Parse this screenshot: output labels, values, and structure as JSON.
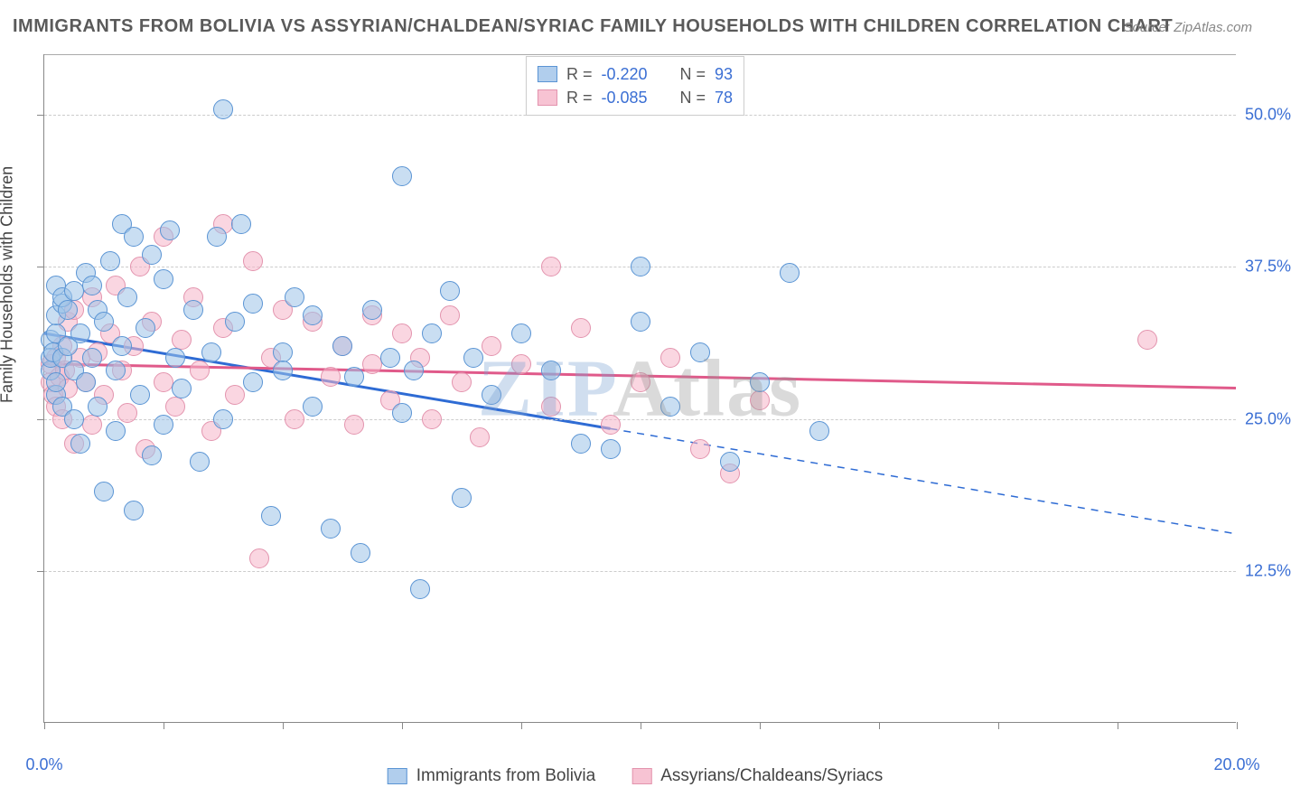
{
  "title": "IMMIGRANTS FROM BOLIVIA VS ASSYRIAN/CHALDEAN/SYRIAC FAMILY HOUSEHOLDS WITH CHILDREN CORRELATION CHART",
  "source": "Source: ZipAtlas.com",
  "ylabel": "Family Households with Children",
  "watermark_a": "ZIP",
  "watermark_b": "Atlas",
  "chart": {
    "type": "scatter",
    "xlim": [
      0,
      20
    ],
    "ylim": [
      0,
      55
    ],
    "x_tick_step": 2,
    "y_grid": [
      12.5,
      25.0,
      37.5,
      50.0
    ],
    "y_grid_labels": [
      "12.5%",
      "25.0%",
      "37.5%",
      "50.0%"
    ],
    "x_labels": [
      {
        "x": 0,
        "label": "0.0%"
      },
      {
        "x": 20,
        "label": "20.0%"
      }
    ],
    "background_color": "#ffffff",
    "grid_color": "#cccccc",
    "axis_color": "#888888",
    "tick_label_color": "#3b6fd4",
    "marker_radius": 11,
    "series": [
      {
        "name": "Immigrants from Bolivia",
        "key": "blue",
        "color_fill": "rgba(157,194,232,0.55)",
        "color_stroke": "#5a94d4",
        "trend_color": "#2e6bd4",
        "trend_width": 3,
        "trend_solid_from_x": 0,
        "trend_solid_to_x": 9.5,
        "trend_dash_to_x": 20,
        "trend_y_at_0": 32.0,
        "trend_y_at_20": 15.5,
        "R": "-0.220",
        "N": "93",
        "points": [
          [
            0.1,
            31.5
          ],
          [
            0.1,
            29.0
          ],
          [
            0.1,
            30.0
          ],
          [
            0.15,
            30.5
          ],
          [
            0.2,
            27.0
          ],
          [
            0.2,
            28.0
          ],
          [
            0.2,
            32.0
          ],
          [
            0.2,
            36.0
          ],
          [
            0.2,
            33.5
          ],
          [
            0.3,
            34.5
          ],
          [
            0.3,
            35.0
          ],
          [
            0.3,
            30.0
          ],
          [
            0.3,
            26.0
          ],
          [
            0.4,
            31.0
          ],
          [
            0.4,
            34.0
          ],
          [
            0.5,
            35.5
          ],
          [
            0.5,
            29.0
          ],
          [
            0.5,
            25.0
          ],
          [
            0.6,
            23.0
          ],
          [
            0.6,
            32.0
          ],
          [
            0.7,
            37.0
          ],
          [
            0.7,
            28.0
          ],
          [
            0.8,
            30.0
          ],
          [
            0.8,
            36.0
          ],
          [
            0.9,
            34.0
          ],
          [
            0.9,
            26.0
          ],
          [
            1.0,
            19.0
          ],
          [
            1.0,
            33.0
          ],
          [
            1.1,
            38.0
          ],
          [
            1.2,
            29.0
          ],
          [
            1.2,
            24.0
          ],
          [
            1.3,
            41.0
          ],
          [
            1.3,
            31.0
          ],
          [
            1.4,
            35.0
          ],
          [
            1.5,
            40.0
          ],
          [
            1.5,
            17.5
          ],
          [
            1.6,
            27.0
          ],
          [
            1.7,
            32.5
          ],
          [
            1.8,
            22.0
          ],
          [
            1.8,
            38.5
          ],
          [
            2.0,
            24.5
          ],
          [
            2.0,
            36.5
          ],
          [
            2.1,
            40.5
          ],
          [
            2.2,
            30.0
          ],
          [
            2.3,
            27.5
          ],
          [
            2.5,
            34.0
          ],
          [
            2.6,
            21.5
          ],
          [
            2.8,
            30.5
          ],
          [
            2.9,
            40.0
          ],
          [
            3.0,
            50.5
          ],
          [
            3.0,
            25.0
          ],
          [
            3.2,
            33.0
          ],
          [
            3.3,
            41.0
          ],
          [
            3.5,
            28.0
          ],
          [
            3.5,
            34.5
          ],
          [
            3.8,
            17.0
          ],
          [
            4.0,
            30.5
          ],
          [
            4.0,
            29.0
          ],
          [
            4.2,
            35.0
          ],
          [
            4.5,
            26.0
          ],
          [
            4.5,
            33.5
          ],
          [
            4.8,
            16.0
          ],
          [
            5.0,
            31.0
          ],
          [
            5.2,
            28.5
          ],
          [
            5.3,
            14.0
          ],
          [
            5.5,
            34.0
          ],
          [
            5.8,
            30.0
          ],
          [
            6.0,
            45.0
          ],
          [
            6.0,
            25.5
          ],
          [
            6.2,
            29.0
          ],
          [
            6.3,
            11.0
          ],
          [
            6.5,
            32.0
          ],
          [
            6.8,
            35.5
          ],
          [
            7.0,
            18.5
          ],
          [
            7.2,
            30.0
          ],
          [
            7.5,
            27.0
          ],
          [
            8.0,
            32.0
          ],
          [
            8.5,
            29.0
          ],
          [
            9.0,
            23.0
          ],
          [
            9.5,
            22.5
          ],
          [
            10.0,
            33.0
          ],
          [
            10.5,
            26.0
          ],
          [
            11.0,
            30.5
          ],
          [
            11.5,
            21.5
          ],
          [
            12.0,
            28.0
          ],
          [
            12.5,
            37.0
          ],
          [
            13.0,
            24.0
          ],
          [
            10.0,
            37.5
          ]
        ]
      },
      {
        "name": "Assyrians/Chaldeans/Syriacs",
        "key": "pink",
        "color_fill": "rgba(245,180,200,0.55)",
        "color_stroke": "#e394ae",
        "trend_color": "#e05a8a",
        "trend_width": 3,
        "trend_solid_from_x": 0,
        "trend_solid_to_x": 20,
        "trend_dash_to_x": 20,
        "trend_y_at_0": 29.5,
        "trend_y_at_20": 27.5,
        "R": "-0.085",
        "N": "78",
        "points": [
          [
            0.1,
            28.0
          ],
          [
            0.1,
            29.5
          ],
          [
            0.15,
            27.0
          ],
          [
            0.2,
            30.0
          ],
          [
            0.2,
            26.0
          ],
          [
            0.25,
            28.5
          ],
          [
            0.3,
            31.0
          ],
          [
            0.3,
            25.0
          ],
          [
            0.35,
            29.0
          ],
          [
            0.4,
            33.0
          ],
          [
            0.4,
            27.5
          ],
          [
            0.5,
            34.0
          ],
          [
            0.5,
            23.0
          ],
          [
            0.6,
            30.0
          ],
          [
            0.7,
            28.0
          ],
          [
            0.8,
            35.0
          ],
          [
            0.8,
            24.5
          ],
          [
            0.9,
            30.5
          ],
          [
            1.0,
            27.0
          ],
          [
            1.1,
            32.0
          ],
          [
            1.2,
            36.0
          ],
          [
            1.3,
            29.0
          ],
          [
            1.4,
            25.5
          ],
          [
            1.5,
            31.0
          ],
          [
            1.6,
            37.5
          ],
          [
            1.7,
            22.5
          ],
          [
            1.8,
            33.0
          ],
          [
            2.0,
            28.0
          ],
          [
            2.0,
            40.0
          ],
          [
            2.2,
            26.0
          ],
          [
            2.3,
            31.5
          ],
          [
            2.5,
            35.0
          ],
          [
            2.6,
            29.0
          ],
          [
            2.8,
            24.0
          ],
          [
            3.0,
            32.5
          ],
          [
            3.0,
            41.0
          ],
          [
            3.2,
            27.0
          ],
          [
            3.5,
            38.0
          ],
          [
            3.6,
            13.5
          ],
          [
            3.8,
            30.0
          ],
          [
            4.0,
            34.0
          ],
          [
            4.2,
            25.0
          ],
          [
            4.5,
            33.0
          ],
          [
            4.8,
            28.5
          ],
          [
            5.0,
            31.0
          ],
          [
            5.2,
            24.5
          ],
          [
            5.5,
            29.5
          ],
          [
            5.5,
            33.5
          ],
          [
            5.8,
            26.5
          ],
          [
            6.0,
            32.0
          ],
          [
            6.3,
            30.0
          ],
          [
            6.5,
            25.0
          ],
          [
            6.8,
            33.5
          ],
          [
            7.0,
            28.0
          ],
          [
            7.3,
            23.5
          ],
          [
            7.5,
            31.0
          ],
          [
            8.0,
            29.5
          ],
          [
            8.5,
            26.0
          ],
          [
            9.0,
            32.5
          ],
          [
            9.5,
            24.5
          ],
          [
            8.5,
            37.5
          ],
          [
            10.0,
            28.0
          ],
          [
            10.5,
            30.0
          ],
          [
            11.0,
            22.5
          ],
          [
            11.5,
            20.5
          ],
          [
            12.0,
            26.5
          ],
          [
            18.5,
            31.5
          ]
        ]
      }
    ]
  },
  "legend_top_label_R": "R =",
  "legend_top_label_N": "N =",
  "title_fontsize": 20,
  "label_fontsize": 18
}
